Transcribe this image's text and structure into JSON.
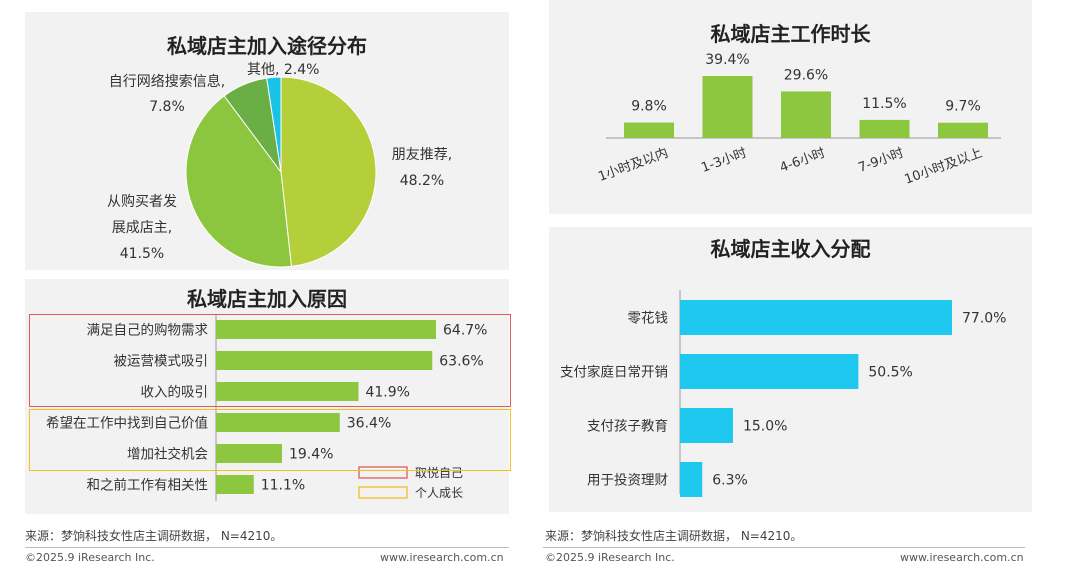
{
  "colors": {
    "green": "#8dc63f",
    "cyan": "#1ec8ef",
    "pie_green": "#6aaf46",
    "pie_cyan": "#19c3e6",
    "pie_light": "#b5cf3a",
    "pie_mid": "#8cc63f",
    "red_box": "#e35a5a",
    "yellow_box": "#f2c01d"
  },
  "chart_data": [
    {
      "type": "pie",
      "title": "私域店主加入途径分布",
      "slices": [
        {
          "label": "朋友推荐,",
          "pct": "48.2%",
          "value": 48.2
        },
        {
          "label": "从购买者发展成店主,",
          "pct": "41.5%",
          "value": 41.5
        },
        {
          "label": "自行网络搜索信息,",
          "pct": "7.8%",
          "value": 7.8
        },
        {
          "label": "其他,",
          "pct": "2.4%",
          "value": 2.4
        }
      ],
      "label_lines": {
        "friend": [
          "朋友推荐,",
          "48.2%"
        ],
        "buyer": [
          "从购买者发",
          "展成店主,",
          "41.5%"
        ],
        "search": [
          "自行网络搜索信息,",
          "7.8%"
        ],
        "other": "其他, 2.4%"
      }
    },
    {
      "type": "bar",
      "title": "私域店主加入原因",
      "categories": [
        "满足自己的购物需求",
        "被运营模式吸引",
        "收入的吸引",
        "希望在工作中找到自己价值",
        "增加社交机会",
        "和之前工作有相关性"
      ],
      "values": [
        64.7,
        63.6,
        41.9,
        36.4,
        19.4,
        11.1
      ],
      "value_labels": [
        "64.7%",
        "63.6%",
        "41.9%",
        "36.4%",
        "19.4%",
        "11.1%"
      ],
      "legend": [
        "取悦自己",
        "个人成长"
      ]
    },
    {
      "type": "bar",
      "title": "私域店主工作时长",
      "categories": [
        "1小时及以内",
        "1-3小时",
        "4-6小时",
        "7-9小时",
        "10小时及以上"
      ],
      "values": [
        9.8,
        39.4,
        29.6,
        11.5,
        9.7
      ],
      "value_labels": [
        "9.8%",
        "39.4%",
        "29.6%",
        "11.5%",
        "9.7%"
      ]
    },
    {
      "type": "bar",
      "title": "私域店主收入分配",
      "categories": [
        "零花钱",
        "支付家庭日常开销",
        "支付孩子教育",
        "用于投资理财"
      ],
      "values": [
        77.0,
        50.5,
        15.0,
        6.3
      ],
      "value_labels": [
        "77.0%",
        "50.5%",
        "15.0%",
        "6.3%"
      ]
    }
  ],
  "source_text": "来源：梦饷科技女性店主调研数据， N=4210。",
  "footer": {
    "copyright": "©2025.9 iResearch Inc.",
    "website": "www.iresearch.com.cn"
  }
}
